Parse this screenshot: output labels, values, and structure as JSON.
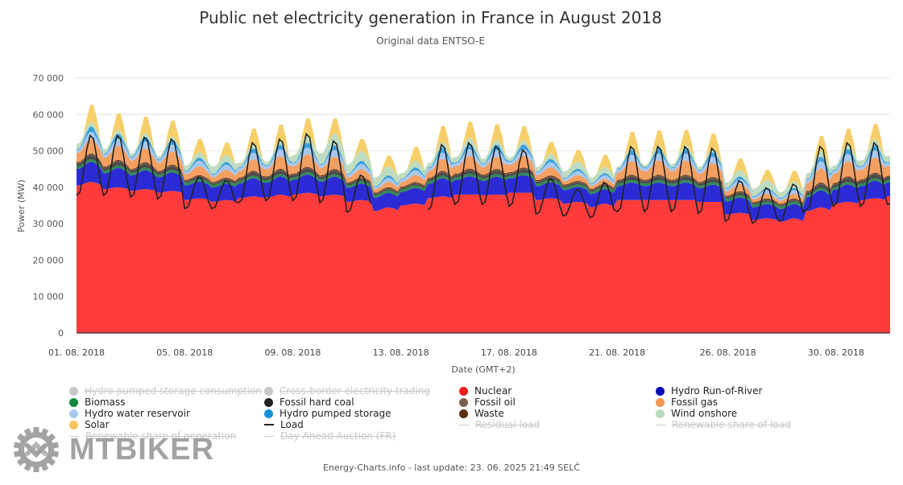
{
  "chart_data": {
    "type": "area",
    "stacked": true,
    "title": "Public net electricity generation in France in August 2018",
    "subtitle": "Original data ENTSO-E",
    "xlabel": "Date (GMT+2)",
    "ylabel": "Power (MW)",
    "ylim": [
      0,
      70000
    ],
    "yticks": [
      0,
      10000,
      20000,
      30000,
      40000,
      50000,
      60000,
      70000
    ],
    "ytick_labels": [
      "0",
      "10 000",
      "20 000",
      "30 000",
      "40 000",
      "50 000",
      "60 000",
      "70 000"
    ],
    "xlim_days": [
      0,
      30.1
    ],
    "xticks": [
      {
        "day": 0,
        "label": "01. 08. 2018"
      },
      {
        "day": 4,
        "label": "05. 08. 2018"
      },
      {
        "day": 8,
        "label": "09. 08. 2018"
      },
      {
        "day": 12,
        "label": "13. 08. 2018"
      },
      {
        "day": 16,
        "label": "17. 08. 2018"
      },
      {
        "day": 20,
        "label": "21. 08. 2018"
      },
      {
        "day": 24.1,
        "label": "26. 08. 2018"
      },
      {
        "day": 28.1,
        "label": "30. 08. 2018"
      }
    ],
    "grid": true,
    "legend_position": "bottom",
    "sampling": "daily (day index 0 = 01.08.2018); each value is an approximate daily night-trough / daytime-peak pair",
    "series": [
      {
        "name": "Nuclear",
        "color": "#ff3b3b",
        "night": [
          40500,
          39500,
          39000,
          38500,
          36500,
          36000,
          37000,
          37200,
          38000,
          37500,
          36000,
          33500,
          35000,
          37000,
          38000,
          37800,
          38500,
          36500,
          35500,
          34500,
          36500,
          36500,
          36500,
          36000,
          32500,
          31000,
          30500,
          33500,
          35500,
          36500,
          37500
        ],
        "day": [
          41500,
          40000,
          39500,
          39000,
          37000,
          36500,
          37500,
          38000,
          38500,
          38000,
          36500,
          34500,
          35500,
          37500,
          38000,
          38000,
          38500,
          37000,
          36000,
          35500,
          36500,
          36500,
          36500,
          36000,
          33000,
          31500,
          31500,
          34500,
          36000,
          37000,
          38500
        ]
      },
      {
        "name": "Hydro Run-of-River",
        "color": "#2b2bd6",
        "night": [
          4500,
          4300,
          4200,
          4200,
          4000,
          3900,
          4000,
          4000,
          4000,
          4000,
          3800,
          3600,
          3700,
          3900,
          4000,
          3900,
          3900,
          3800,
          3700,
          3600,
          3800,
          3800,
          3800,
          3700,
          3600,
          3500,
          3500,
          3700,
          3800,
          3800,
          3800
        ],
        "day": [
          5500,
          5300,
          5200,
          5100,
          4600,
          4500,
          5000,
          5000,
          5000,
          4900,
          4500,
          4000,
          4300,
          5000,
          5000,
          4900,
          4800,
          4400,
          4100,
          4000,
          4800,
          4800,
          4800,
          4700,
          4200,
          3900,
          3900,
          4700,
          4800,
          4800,
          4800
        ]
      },
      {
        "name": "Biomass",
        "color": "#2e8b57",
        "night": [
          700,
          700,
          700,
          700,
          700,
          700,
          700,
          700,
          700,
          700,
          700,
          700,
          700,
          700,
          700,
          700,
          700,
          700,
          700,
          700,
          700,
          700,
          700,
          700,
          700,
          700,
          700,
          700,
          700,
          700,
          700
        ],
        "day": [
          700,
          700,
          700,
          700,
          700,
          700,
          700,
          700,
          700,
          700,
          700,
          700,
          700,
          700,
          700,
          700,
          700,
          700,
          700,
          700,
          700,
          700,
          700,
          700,
          700,
          700,
          700,
          700,
          700,
          700,
          700
        ]
      },
      {
        "name": "Fossil hard coal",
        "color": "#4a4a4a",
        "night": [
          700,
          700,
          600,
          600,
          400,
          400,
          500,
          600,
          600,
          600,
          400,
          300,
          400,
          500,
          600,
          600,
          600,
          500,
          400,
          300,
          600,
          600,
          600,
          600,
          400,
          300,
          300,
          600,
          700,
          700,
          700
        ],
        "day": [
          1200,
          1100,
          1100,
          1000,
          600,
          500,
          900,
          1000,
          1000,
          1000,
          600,
          400,
          500,
          900,
          1000,
          1000,
          1000,
          700,
          500,
          400,
          1000,
          1000,
          1000,
          1000,
          600,
          400,
          400,
          1000,
          1100,
          1100,
          1100
        ]
      },
      {
        "name": "Fossil oil",
        "color": "#7a5c47",
        "night": [
          150,
          150,
          150,
          150,
          150,
          150,
          150,
          150,
          150,
          150,
          150,
          150,
          150,
          150,
          150,
          150,
          150,
          150,
          150,
          150,
          150,
          150,
          150,
          150,
          150,
          150,
          150,
          150,
          150,
          150,
          150
        ],
        "day": [
          200,
          200,
          200,
          200,
          200,
          200,
          200,
          200,
          200,
          200,
          200,
          200,
          200,
          200,
          200,
          200,
          200,
          200,
          200,
          200,
          200,
          200,
          200,
          200,
          200,
          200,
          200,
          200,
          200,
          200,
          200
        ]
      },
      {
        "name": "Waste",
        "color": "#5a3010",
        "night": [
          250,
          250,
          250,
          250,
          250,
          250,
          250,
          250,
          250,
          250,
          250,
          250,
          250,
          250,
          250,
          250,
          250,
          250,
          250,
          250,
          250,
          250,
          250,
          250,
          250,
          250,
          250,
          250,
          250,
          250,
          250
        ],
        "day": [
          250,
          250,
          250,
          250,
          250,
          250,
          250,
          250,
          250,
          250,
          250,
          250,
          250,
          250,
          250,
          250,
          250,
          250,
          250,
          250,
          250,
          250,
          250,
          250,
          250,
          250,
          250,
          250,
          250,
          250,
          250
        ]
      },
      {
        "name": "Fossil gas",
        "color": "#f4a062",
        "night": [
          2500,
          2500,
          2300,
          2200,
          1500,
          1300,
          1800,
          2000,
          2000,
          2000,
          1400,
          900,
          1200,
          1800,
          2000,
          2000,
          2000,
          1400,
          1000,
          800,
          2000,
          2300,
          2300,
          2200,
          1200,
          800,
          800,
          2200,
          2500,
          2600,
          2600
        ],
        "day": [
          4000,
          3900,
          3800,
          3700,
          2500,
          2200,
          3200,
          3500,
          3500,
          3400,
          2300,
          1500,
          2000,
          3300,
          3500,
          3400,
          3300,
          2300,
          1600,
          1300,
          3800,
          4000,
          4000,
          3800,
          2000,
          1300,
          1300,
          4000,
          4200,
          4200,
          4200
        ]
      },
      {
        "name": "Hydro water reservoir",
        "color": "#a8c8f0",
        "night": [
          800,
          800,
          800,
          800,
          700,
          700,
          800,
          800,
          800,
          800,
          700,
          600,
          700,
          800,
          800,
          800,
          800,
          700,
          600,
          600,
          800,
          800,
          800,
          800,
          700,
          600,
          600,
          800,
          800,
          800,
          800
        ],
        "day": [
          2000,
          1900,
          1900,
          1900,
          1500,
          1400,
          1800,
          1900,
          1900,
          1900,
          1400,
          1100,
          1300,
          1800,
          1900,
          1900,
          1800,
          1400,
          1100,
          1000,
          1800,
          1900,
          1900,
          1800,
          1300,
          1000,
          1000,
          1900,
          2000,
          2000,
          2000
        ]
      },
      {
        "name": "Hydro pumped storage",
        "color": "#3aa0dc",
        "night": [
          200,
          200,
          200,
          200,
          200,
          200,
          200,
          200,
          200,
          200,
          200,
          200,
          200,
          200,
          200,
          200,
          200,
          200,
          200,
          200,
          200,
          200,
          200,
          200,
          200,
          200,
          200,
          200,
          200,
          200,
          200
        ],
        "day": [
          1500,
          1500,
          1400,
          1400,
          900,
          800,
          1200,
          1300,
          1300,
          1300,
          900,
          700,
          800,
          1400,
          1500,
          1500,
          1300,
          900,
          700,
          600,
          1300,
          1300,
          1300,
          1300,
          800,
          600,
          600,
          1300,
          1400,
          1400,
          1400
        ]
      },
      {
        "name": "Wind onshore",
        "color": "#bfdcc0",
        "night": [
          1500,
          1200,
          900,
          800,
          1500,
          2000,
          1200,
          900,
          2000,
          3000,
          2500,
          2300,
          1500,
          1200,
          1500,
          1200,
          900,
          1200,
          1800,
          1500,
          600,
          700,
          900,
          800,
          1500,
          2000,
          1500,
          1500,
          1200,
          1500,
          1800
        ],
        "day": [
          1200,
          1000,
          900,
          800,
          1400,
          1800,
          1100,
          1000,
          2200,
          3200,
          2800,
          2500,
          1800,
          1500,
          1700,
          1300,
          1000,
          1400,
          2000,
          1700,
          800,
          900,
          1000,
          1000,
          1800,
          2200,
          1800,
          1600,
          1400,
          1700,
          1900
        ]
      },
      {
        "name": "Solar",
        "color": "#f7cf6a",
        "night": [
          0,
          0,
          0,
          0,
          0,
          0,
          0,
          0,
          0,
          0,
          0,
          0,
          0,
          0,
          0,
          0,
          0,
          0,
          0,
          0,
          0,
          0,
          0,
          0,
          0,
          0,
          0,
          0,
          0,
          0,
          0
        ],
        "day": [
          5200,
          5000,
          5000,
          4800,
          4000,
          3800,
          4800,
          4900,
          4900,
          4600,
          3500,
          3200,
          4200,
          4800,
          4800,
          4700,
          4400,
          3600,
          3400,
          3600,
          4600,
          4600,
          4600,
          4500,
          3400,
          3000,
          3200,
          4500,
          4600,
          4600,
          4600
        ]
      }
    ],
    "lines": [
      {
        "name": "Load",
        "color": "#222222",
        "night": [
          37500,
          37500,
          37000,
          36500,
          34000,
          34000,
          35500,
          36000,
          36000,
          35500,
          33000,
          null,
          null,
          33500,
          35000,
          35000,
          34500,
          32500,
          32000,
          31500,
          33000,
          33000,
          33000,
          32500,
          30500,
          30000,
          30500,
          33500,
          34500,
          34500,
          35000
        ],
        "day": [
          54500,
          54500,
          54000,
          53500,
          43000,
          42000,
          52500,
          53500,
          55000,
          53000,
          43500,
          null,
          null,
          52000,
          52500,
          51500,
          50500,
          42500,
          39500,
          41500,
          51500,
          51500,
          51500,
          51000,
          42000,
          40000,
          41000,
          51500,
          52500,
          52500,
          52000
        ]
      }
    ],
    "load_gap_days": [
      11.3,
      12.1
    ]
  },
  "legend": {
    "items": [
      {
        "label": "Hydro pumped storage consumption",
        "color": "#c8c8c8",
        "marker": "dot",
        "hidden": true
      },
      {
        "label": "Cross-border electricity trading",
        "color": "#c8c8c8",
        "marker": "dot",
        "hidden": true
      },
      {
        "label": "Nuclear",
        "color": "#ee1c1c",
        "marker": "dot",
        "hidden": false
      },
      {
        "label": "Hydro Run-of-River",
        "color": "#0a0ab8",
        "marker": "dot",
        "hidden": false
      },
      {
        "label": "Biomass",
        "color": "#0f8a3a",
        "marker": "dot",
        "hidden": false
      },
      {
        "label": "Fossil hard coal",
        "color": "#222222",
        "marker": "dot",
        "hidden": false
      },
      {
        "label": "Fossil oil",
        "color": "#7d6050",
        "marker": "dot",
        "hidden": false
      },
      {
        "label": "Fossil gas",
        "color": "#f49552",
        "marker": "dot",
        "hidden": false
      },
      {
        "label": "Hydro water reservoir",
        "color": "#a8c8f0",
        "marker": "dot",
        "hidden": false
      },
      {
        "label": "Hydro pumped storage",
        "color": "#1a8fdc",
        "marker": "dot",
        "hidden": false
      },
      {
        "label": "Waste",
        "color": "#5a3010",
        "marker": "dot",
        "hidden": false
      },
      {
        "label": "Wind onshore",
        "color": "#bcdcbf",
        "marker": "dot",
        "hidden": false
      },
      {
        "label": "Solar",
        "color": "#f9c460",
        "marker": "dot",
        "hidden": false
      },
      {
        "label": "Load",
        "color": "#222222",
        "marker": "line",
        "hidden": false
      },
      {
        "label": "Residual load",
        "color": "#cccccc",
        "marker": "line",
        "hidden": true
      },
      {
        "label": "Renewable share of load",
        "color": "#cccccc",
        "marker": "line",
        "hidden": true
      },
      {
        "label": "Renewable share of generation",
        "color": "#cccccc",
        "marker": "line",
        "hidden": true
      },
      {
        "label": "Day Ahead Auction (FR)",
        "color": "#cccccc",
        "marker": "line",
        "hidden": true
      }
    ]
  },
  "footer": "Energy-Charts.info - last update: 23. 06. 2025 21:49 SELČ",
  "watermark": "MTBIKER"
}
